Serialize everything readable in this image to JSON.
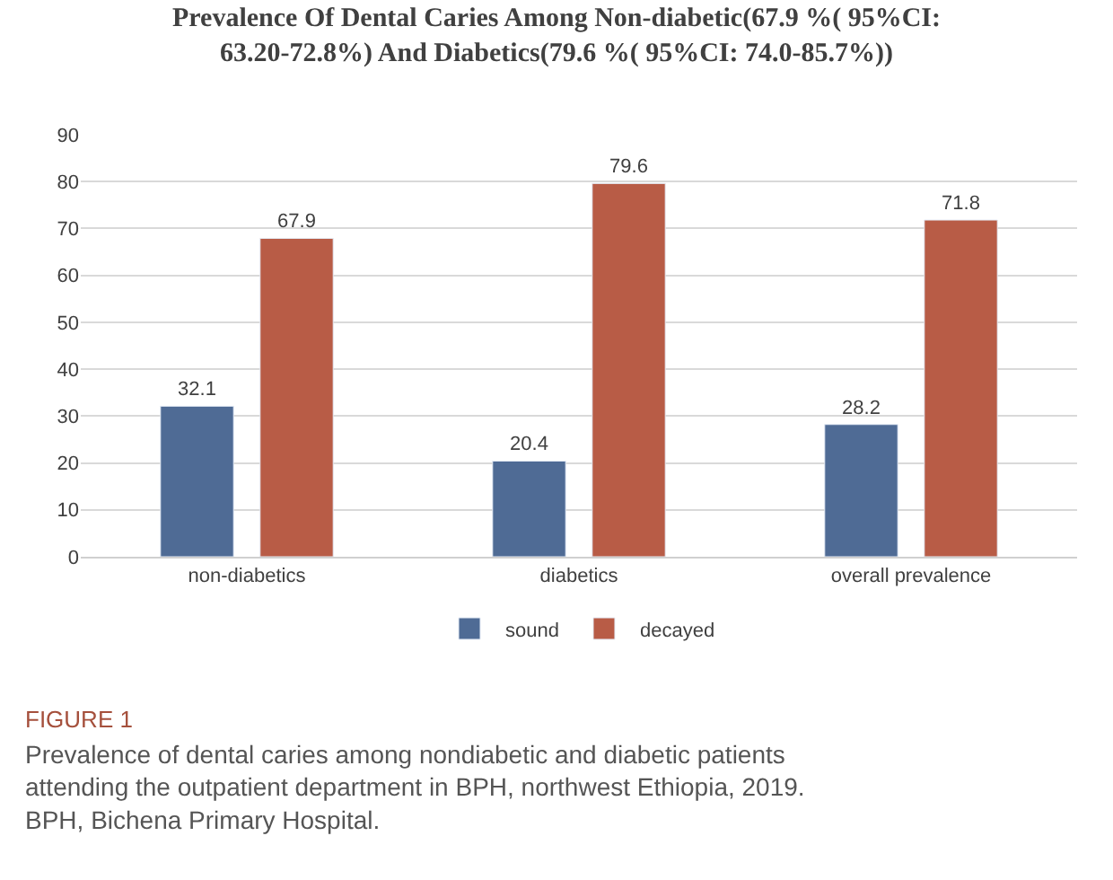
{
  "chart_data": {
    "type": "bar",
    "title": "Prevalence Of Dental Caries Among Non-diabetic(67.9 %( 95%CI: 63.20-72.8%) And Diabetics(79.6 %( 95%CI: 74.0-85.7%))",
    "categories": [
      "non-diabetics",
      "diabetics",
      "overall prevalence"
    ],
    "series": [
      {
        "name": "sound",
        "color": "#4f6b95",
        "values": [
          32.1,
          20.4,
          28.2
        ]
      },
      {
        "name": "decayed",
        "color": "#b85c46",
        "values": [
          67.9,
          79.6,
          71.8
        ]
      }
    ],
    "ylim": [
      0,
      90
    ],
    "yticks": [
      0,
      10,
      20,
      30,
      40,
      50,
      60,
      70,
      80,
      90
    ],
    "grid": "y",
    "legend": "bottom",
    "data_labels": true,
    "annotations": [
      "FIGURE 1",
      "Prevalence of dental caries among nondiabetic and diabetic patients attending the outpatient department in BPH, northwest Ethiopia, 2019. BPH, Bichena Primary Hospital."
    ]
  }
}
